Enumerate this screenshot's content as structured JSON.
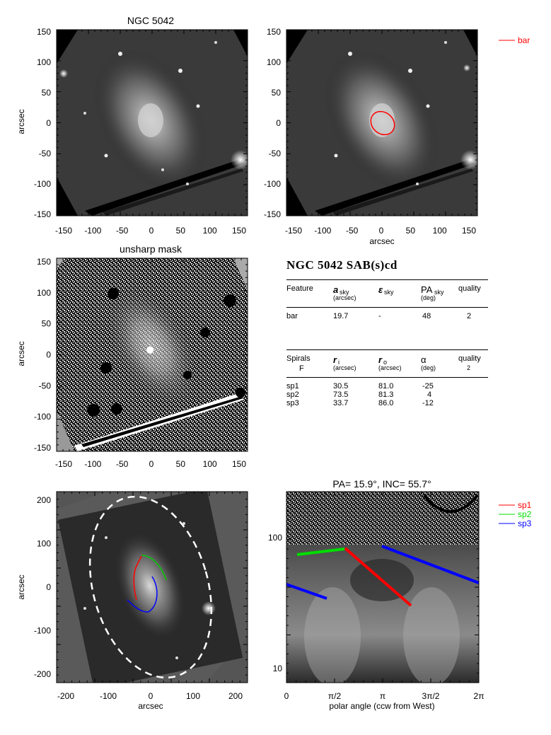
{
  "panels": {
    "top_left": {
      "title": "NGC 5042",
      "ylabel": "arcsec",
      "xticks": [
        "-150",
        "-100",
        "-50",
        "0",
        "50",
        "100",
        "150"
      ],
      "yticks": [
        "150",
        "100",
        "50",
        "0",
        "-50",
        "-100",
        "-150"
      ]
    },
    "top_right": {
      "xlabel": "arcsec",
      "xticks": [
        "-150",
        "-100",
        "-50",
        "0",
        "50",
        "100",
        "150"
      ],
      "yticks": [
        "150",
        "100",
        "50",
        "0",
        "-50",
        "-100",
        "-150"
      ],
      "legend": [
        {
          "label": "bar",
          "color": "#ff0000"
        }
      ]
    },
    "middle_left": {
      "title": "unsharp mask",
      "ylabel": "arcsec",
      "xticks": [
        "-150",
        "-100",
        "-50",
        "0",
        "50",
        "100",
        "150"
      ],
      "yticks": [
        "150",
        "100",
        "50",
        "0",
        "-50",
        "-100",
        "-150"
      ]
    },
    "bottom_left": {
      "xlabel": "arcsec",
      "ylabel": "arcsec",
      "xticks": [
        "-200",
        "-100",
        "0",
        "100",
        "200"
      ],
      "yticks": [
        "200",
        "100",
        "0",
        "-100",
        "-200"
      ]
    },
    "bottom_right": {
      "title": "PA=  15.9°, INC=  55.7°",
      "xlabel": "polar angle (ccw from West)",
      "xticks": [
        "0",
        "π/2",
        "π",
        "3π/2",
        "2π"
      ],
      "yticks": [
        "100",
        "10"
      ],
      "legend": [
        {
          "label": "sp1",
          "color": "#ff0000"
        },
        {
          "label": "sp2",
          "color": "#00dd00"
        },
        {
          "label": "sp3",
          "color": "#0000ff"
        }
      ]
    }
  },
  "table": {
    "heading": "NGC 5042  SAB(s)cd",
    "bar_header": {
      "c1": "Feature",
      "c2": "a",
      "c2sub": "sky",
      "c2unit": "(arcsec)",
      "c3": "ε",
      "c3sub": "sky",
      "c4": "PA",
      "c4sub": "sky",
      "c4unit": "(deg)",
      "c5": "quality"
    },
    "bar_row": {
      "c1": "bar",
      "c2": "19.7",
      "c3": "-",
      "c4": "48",
      "c5": "2"
    },
    "spiral_header": {
      "c1": "Spirals",
      "c1b": "F",
      "c2": "r",
      "c2sub": "i",
      "c2unit": "(arcsec)",
      "c3": "r",
      "c3sub": "o",
      "c3unit": "(arcsec)",
      "c4": "α",
      "c4unit": "(deg)",
      "c5": "quality",
      "c5b": "2"
    },
    "spiral_rows": [
      {
        "c1": "sp1",
        "c2": "30.5",
        "c3": "81.0",
        "c4": "-25"
      },
      {
        "c1": "sp2",
        "c2": "73.5",
        "c3": "81.3",
        "c4": "4"
      },
      {
        "c1": "sp3",
        "c2": "33.7",
        "c3": "86.0",
        "c4": "-12"
      }
    ]
  }
}
